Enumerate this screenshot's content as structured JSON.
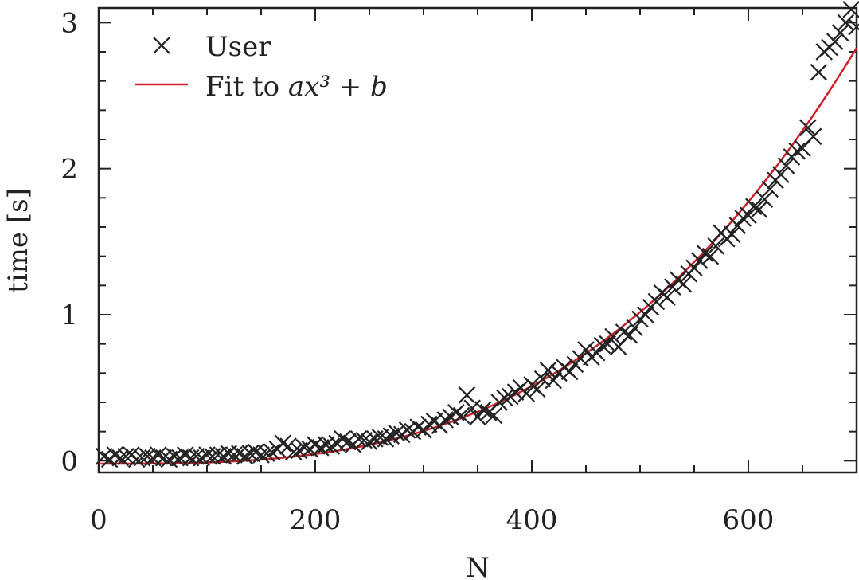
{
  "chart_data": {
    "type": "scatter",
    "title": "",
    "xlabel": "N",
    "ylabel": "time [s]",
    "xlim": [
      0,
      700
    ],
    "ylim": [
      -0.08,
      3.1
    ],
    "x_ticks": [
      0,
      200,
      400,
      600
    ],
    "x_tick_labels": [
      "0",
      "200",
      "400",
      "600"
    ],
    "y_ticks": [
      0,
      1,
      2,
      3
    ],
    "y_tick_labels": [
      "0",
      "1",
      "2",
      "3"
    ],
    "grid": false,
    "legend_position": "top-left",
    "colors": {
      "markers": "#222222",
      "fit": "#d0202a",
      "axes": "#222222"
    },
    "legend": [
      {
        "label": "User",
        "symbol": "cross-marker"
      },
      {
        "label_prefix": "Fit to ",
        "label_math": "ax³ + b",
        "symbol": "red-line"
      }
    ],
    "series": [
      {
        "name": "User",
        "kind": "scatter",
        "x": [
          5,
          10,
          15,
          20,
          25,
          30,
          35,
          40,
          45,
          50,
          55,
          60,
          65,
          70,
          75,
          80,
          85,
          90,
          95,
          100,
          105,
          110,
          115,
          120,
          125,
          130,
          135,
          140,
          145,
          150,
          155,
          160,
          165,
          170,
          175,
          180,
          185,
          190,
          195,
          200,
          205,
          210,
          215,
          220,
          225,
          230,
          235,
          240,
          245,
          250,
          255,
          260,
          265,
          270,
          275,
          280,
          285,
          290,
          295,
          300,
          305,
          310,
          315,
          320,
          325,
          330,
          335,
          340,
          345,
          350,
          355,
          360,
          365,
          370,
          375,
          380,
          385,
          390,
          395,
          400,
          405,
          410,
          415,
          420,
          425,
          430,
          435,
          440,
          445,
          450,
          455,
          460,
          465,
          470,
          475,
          480,
          485,
          490,
          495,
          500,
          505,
          510,
          515,
          520,
          525,
          530,
          535,
          540,
          545,
          550,
          555,
          560,
          565,
          570,
          575,
          580,
          585,
          590,
          595,
          600,
          605,
          610,
          615,
          620,
          625,
          630,
          635,
          640,
          645,
          650,
          655,
          660,
          665,
          670,
          675,
          680,
          685,
          690,
          695,
          700
        ],
        "y": [
          0.03,
          0.01,
          0.04,
          0.02,
          0.03,
          0.04,
          0.01,
          0.02,
          0.03,
          0.02,
          0.04,
          0.02,
          0.01,
          0.03,
          0.02,
          0.04,
          0.02,
          0.03,
          0.02,
          0.04,
          0.03,
          0.04,
          0.03,
          0.05,
          0.04,
          0.05,
          0.03,
          0.05,
          0.06,
          0.04,
          0.05,
          0.06,
          0.08,
          0.12,
          0.1,
          0.06,
          0.07,
          0.09,
          0.08,
          0.11,
          0.09,
          0.11,
          0.1,
          0.12,
          0.15,
          0.13,
          0.11,
          0.15,
          0.14,
          0.13,
          0.15,
          0.16,
          0.15,
          0.17,
          0.19,
          0.18,
          0.21,
          0.2,
          0.23,
          0.21,
          0.25,
          0.27,
          0.24,
          0.28,
          0.3,
          0.33,
          0.31,
          0.45,
          0.36,
          0.3,
          0.35,
          0.33,
          0.31,
          0.4,
          0.43,
          0.44,
          0.47,
          0.5,
          0.46,
          0.52,
          0.49,
          0.56,
          0.62,
          0.55,
          0.6,
          0.64,
          0.61,
          0.66,
          0.7,
          0.76,
          0.71,
          0.74,
          0.79,
          0.8,
          0.85,
          0.78,
          0.88,
          0.86,
          0.91,
          0.97,
          1.0,
          1.05,
          1.09,
          1.15,
          1.12,
          1.19,
          1.24,
          1.21,
          1.28,
          1.32,
          1.37,
          1.42,
          1.4,
          1.47,
          1.56,
          1.52,
          1.55,
          1.61,
          1.66,
          1.68,
          1.74,
          1.72,
          1.79,
          1.86,
          1.92,
          1.96,
          2.02,
          2.08,
          2.12,
          2.14,
          2.28,
          2.22,
          2.66,
          2.8,
          2.83,
          2.87,
          2.93,
          3.0,
          3.09,
          2.97
        ]
      },
      {
        "name": "Fit to ax³ + b",
        "kind": "fit",
        "model": {
          "a": 8.3e-09,
          "b": -0.02
        }
      }
    ]
  }
}
